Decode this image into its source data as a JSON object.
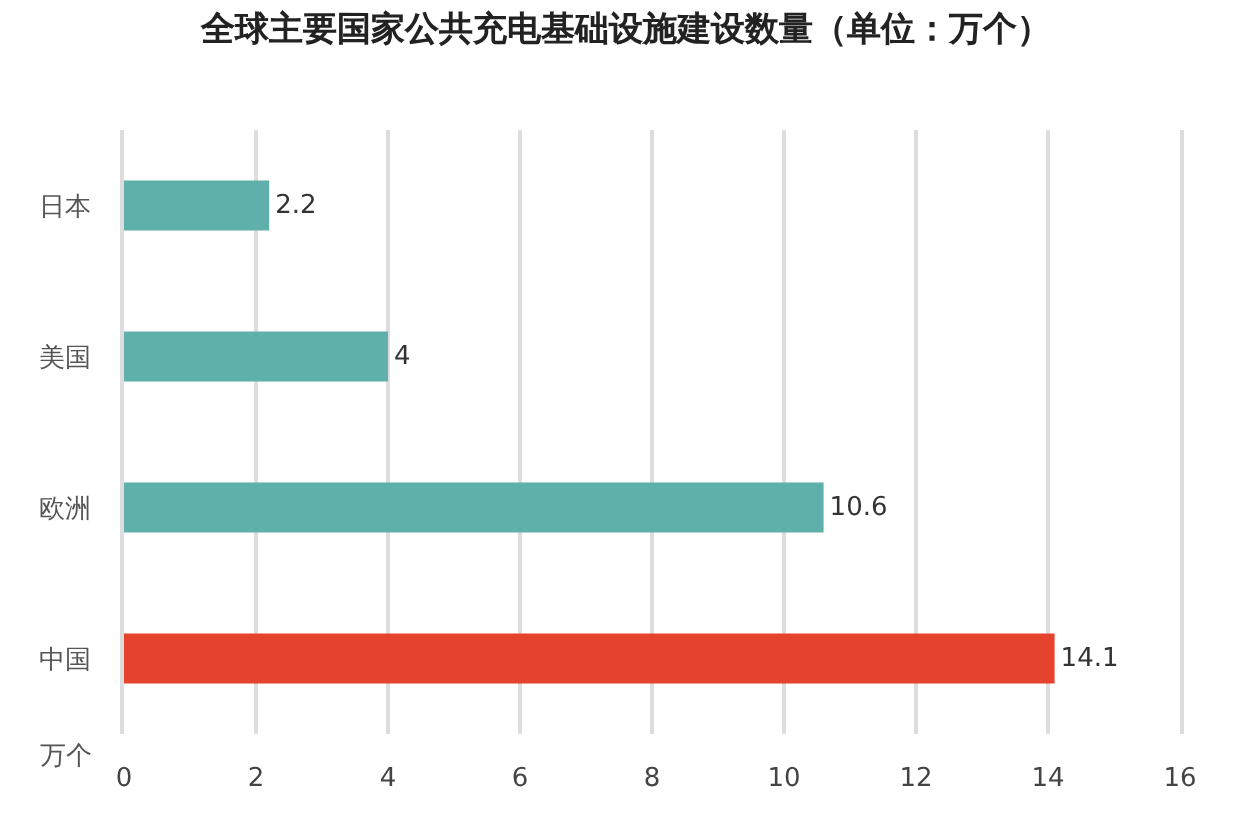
{
  "chart_data": {
    "type": "bar",
    "orientation": "horizontal",
    "title": "全球主要国家公共充电基础设施建设数量（单位：万个）",
    "xlabel": "万个",
    "categories": [
      "日本",
      "美国",
      "欧洲",
      "中国"
    ],
    "values": [
      2.2,
      4,
      10.6,
      14.1
    ],
    "colors": [
      "#5fb0aa",
      "#5fb0aa",
      "#5fb0aa",
      "#e5432e"
    ],
    "xlim": [
      0,
      16
    ],
    "xticks": [
      0,
      2,
      4,
      6,
      8,
      10,
      12,
      14,
      16
    ],
    "grid": "x",
    "data_labels": true
  }
}
